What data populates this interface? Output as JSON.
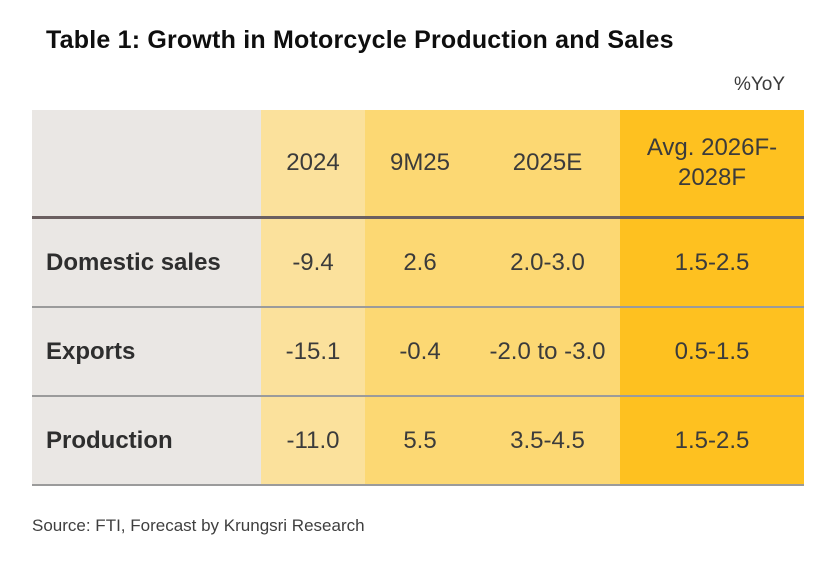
{
  "title": "Table 1: Growth in Motorcycle Production and Sales",
  "unit_label": "%YoY",
  "source": "Source: FTI, Forecast by Krungsri Research",
  "colors": {
    "label_column_bg": "#EAE7E4",
    "col_2024_bg": "#FBE19C",
    "col_9m25_2025e_bg": "#FCD873",
    "col_avg_bg": "#FEC120",
    "header_underline": "#6B5F60",
    "row_divider": "#9B9B9B",
    "text": "#3B3B3B"
  },
  "chart_data": {
    "type": "table",
    "title": "Table 1: Growth in Motorcycle Production and Sales",
    "unit": "%YoY",
    "columns": [
      "",
      "2024",
      "9M25",
      "2025E",
      "Avg. 2026F-2028F"
    ],
    "rows": [
      {
        "label": "Domestic sales",
        "values": [
          "-9.4",
          "2.6",
          "2.0-3.0",
          "1.5-2.5"
        ]
      },
      {
        "label": "Exports",
        "values": [
          "-15.1",
          "-0.4",
          "-2.0 to -3.0",
          "0.5-1.5"
        ]
      },
      {
        "label": "Production",
        "values": [
          "-11.0",
          "5.5",
          "3.5-4.5",
          "1.5-2.5"
        ]
      }
    ],
    "source": "Source: FTI, Forecast by Krungsri Research"
  }
}
